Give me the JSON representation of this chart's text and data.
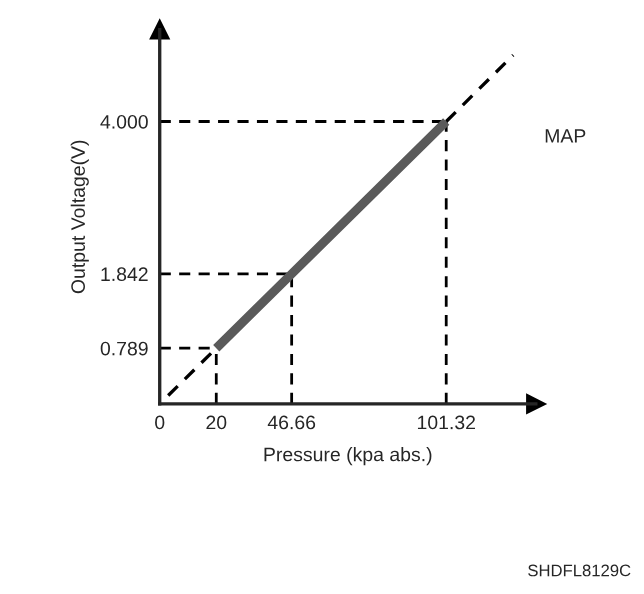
{
  "chart_data": {
    "type": "line",
    "xlabel": "Pressure (kpa abs.)",
    "ylabel": "Output Voltage(V)",
    "series": [
      {
        "x": [
          20,
          46.66,
          101.32
        ],
        "values": [
          0.789,
          1.842,
          4.0
        ],
        "color": "#5a5a5a"
      },
      {
        "x": [
          3,
          20
        ],
        "values": [
          0.12,
          0.789
        ],
        "color": "#000000",
        "line_style": "dashed"
      },
      {
        "x": [
          101.32,
          125
        ],
        "values": [
          4.0,
          4.94
        ],
        "color": "#000000",
        "line_style": "dashed"
      }
    ],
    "ref_lines": [
      {
        "axis": "x",
        "value": 20,
        "line_style": "dashed",
        "color": "#000000"
      },
      {
        "axis": "x",
        "value": 46.66,
        "line_style": "dashed",
        "color": "#000000"
      },
      {
        "axis": "x",
        "value": 101.32,
        "line_style": "dashed",
        "color": "#000000"
      },
      {
        "axis": "y",
        "value": 0.789,
        "line_style": "dashed",
        "color": "#000000"
      },
      {
        "axis": "y",
        "value": 1.842,
        "line_style": "dashed",
        "color": "#000000"
      },
      {
        "axis": "y",
        "value": 4.0,
        "line_style": "dashed",
        "color": "#000000"
      }
    ],
    "xlim": [
      0,
      133
    ],
    "ylim": [
      0,
      5.3
    ],
    "xticks": [
      0,
      20,
      46.66,
      101.32
    ],
    "yticks": [
      0.789,
      1.842,
      {
        "value": 4.0,
        "label": "4.000"
      }
    ],
    "grid": false,
    "legend": false,
    "annotations": [
      "MAP",
      "SHDFL8129C"
    ]
  }
}
